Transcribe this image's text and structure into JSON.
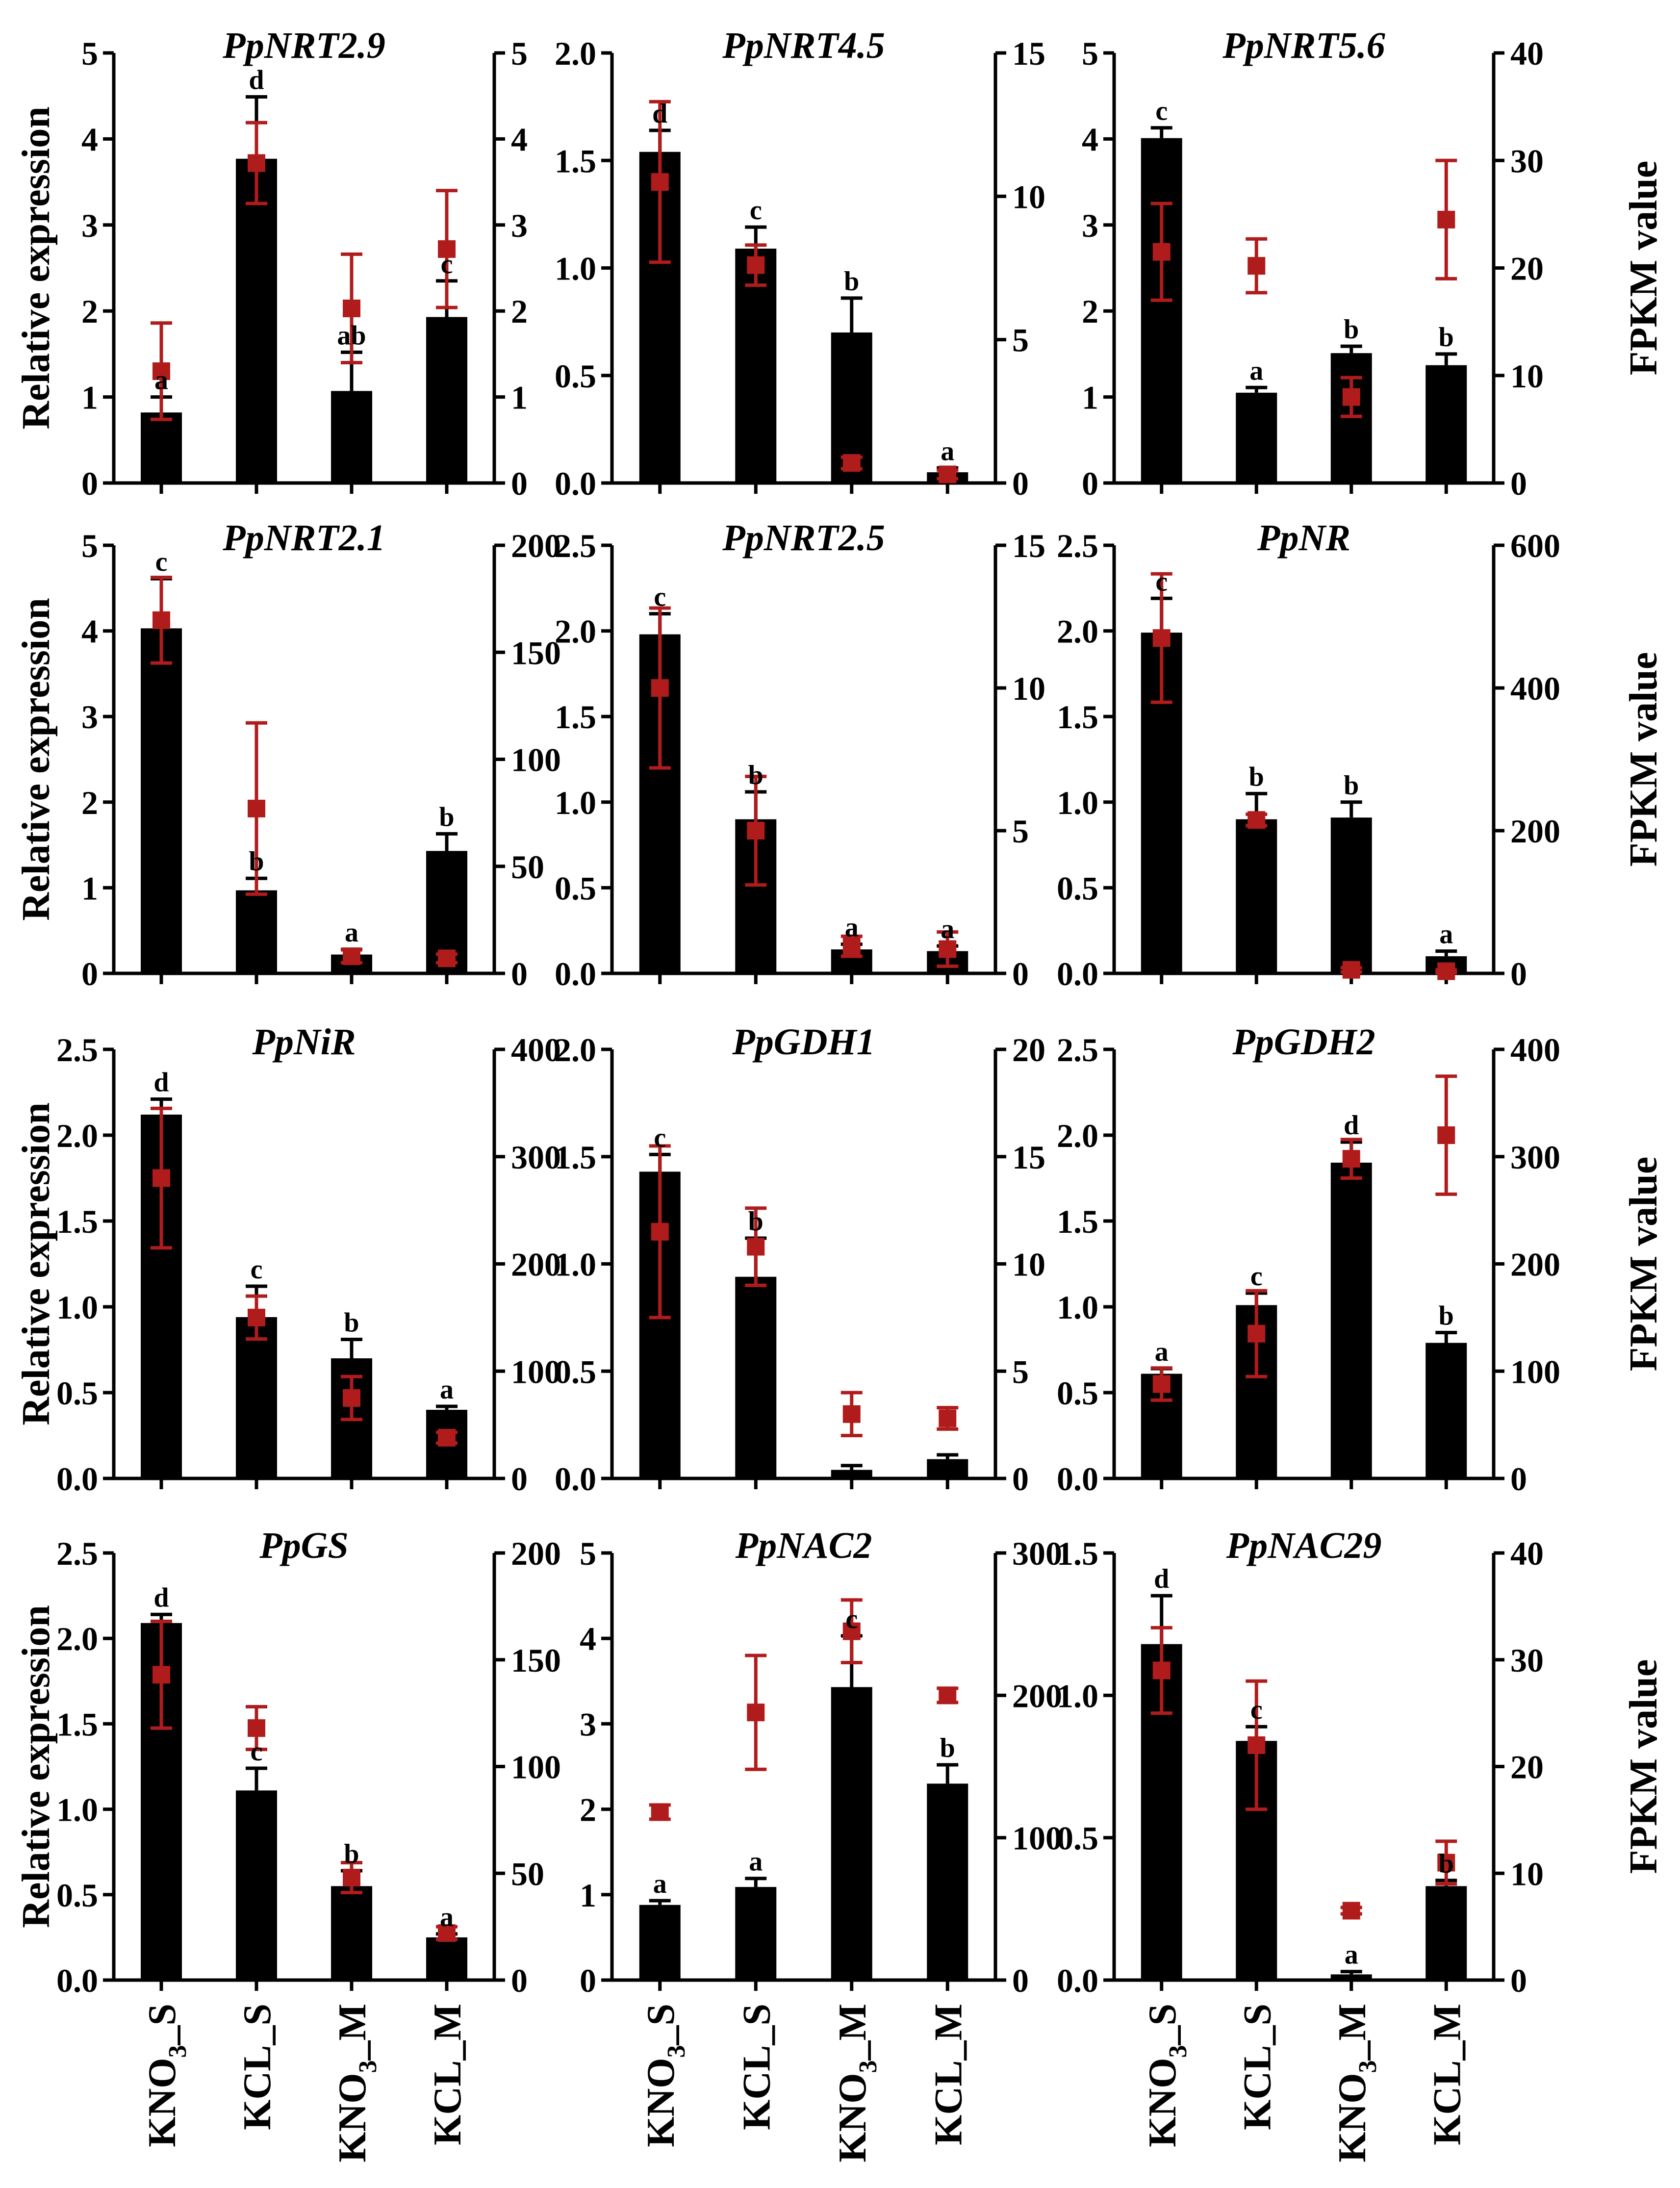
{
  "figure": {
    "ylabel_left": "Relative expression",
    "ylabel_right": "FPKM value",
    "x_labels": [
      {
        "main": "KNO",
        "sub": "3",
        "tail": "_S"
      },
      {
        "main": "KCL_S",
        "sub": "",
        "tail": ""
      },
      {
        "main": "KNO",
        "sub": "3",
        "tail": "_M"
      },
      {
        "main": "KCL_M",
        "sub": "",
        "tail": ""
      }
    ],
    "colors": {
      "bar": "#000000",
      "fpkm": "#b01c1c"
    }
  },
  "chart_data": [
    {
      "type": "bar",
      "title": "PpNRT2.9",
      "categories": [
        "KNO3_S",
        "KCL_S",
        "KNO3_M",
        "KCL_M"
      ],
      "ylim_left": [
        0,
        5
      ],
      "left_ticks": [
        "0",
        "1",
        "2",
        "3",
        "4",
        "5"
      ],
      "ylim_right": [
        0,
        5
      ],
      "right_ticks": [
        "0",
        "1",
        "2",
        "3",
        "4",
        "5"
      ],
      "series": [
        {
          "name": "Relative expression",
          "axis": "left",
          "values": [
            0.82,
            3.77,
            1.07,
            1.93
          ],
          "errors": [
            0.18,
            0.72,
            0.45,
            0.42
          ]
        },
        {
          "name": "FPKM value",
          "axis": "right",
          "values": [
            1.3,
            3.72,
            2.03,
            2.72
          ],
          "errors": [
            0.56,
            0.47,
            0.63,
            0.68
          ]
        }
      ],
      "letters": [
        "a",
        "d",
        "ab",
        "c"
      ]
    },
    {
      "type": "bar",
      "title": "PpNRT4.5",
      "categories": [
        "KNO3_S",
        "KCL_S",
        "KNO3_M",
        "KCL_M"
      ],
      "ylim_left": [
        0,
        2
      ],
      "left_ticks": [
        "0.0",
        "0.5",
        "1.0",
        "1.5",
        "2.0"
      ],
      "ylim_right": [
        0,
        15
      ],
      "right_ticks": [
        "0",
        "5",
        "10",
        "15"
      ],
      "series": [
        {
          "name": "Relative expression",
          "axis": "left",
          "values": [
            1.54,
            1.09,
            0.7,
            0.05
          ],
          "errors": [
            0.1,
            0.1,
            0.16,
            0.02
          ]
        },
        {
          "name": "FPKM value",
          "axis": "right",
          "values": [
            10.5,
            7.6,
            0.7,
            0.3
          ],
          "errors": [
            2.8,
            0.7,
            0.2,
            0.15
          ]
        }
      ],
      "letters": [
        "d",
        "c",
        "b",
        "a"
      ]
    },
    {
      "type": "bar",
      "title": "PpNRT5.6",
      "categories": [
        "KNO3_S",
        "KCL_S",
        "KNO3_M",
        "KCL_M"
      ],
      "ylim_left": [
        0,
        5
      ],
      "left_ticks": [
        "0",
        "1",
        "2",
        "3",
        "4",
        "5"
      ],
      "ylim_right": [
        0,
        40
      ],
      "right_ticks": [
        "0",
        "10",
        "20",
        "30",
        "40"
      ],
      "series": [
        {
          "name": "Relative expression",
          "axis": "left",
          "values": [
            4.01,
            1.05,
            1.51,
            1.37
          ],
          "errors": [
            0.12,
            0.06,
            0.08,
            0.13
          ]
        },
        {
          "name": "FPKM value",
          "axis": "right",
          "values": [
            21.5,
            20.2,
            8.0,
            24.5
          ],
          "errors": [
            4.5,
            2.5,
            1.8,
            5.5
          ]
        }
      ],
      "letters": [
        "c",
        "a",
        "b",
        "b"
      ]
    },
    {
      "type": "bar",
      "title": "PpNRT2.1",
      "categories": [
        "KNO3_S",
        "KCL_S",
        "KNO3_M",
        "KCL_M"
      ],
      "ylim_left": [
        0,
        5
      ],
      "left_ticks": [
        "0",
        "1",
        "2",
        "3",
        "4",
        "5"
      ],
      "ylim_right": [
        0,
        200
      ],
      "right_ticks": [
        "0",
        "50",
        "100",
        "150",
        "200"
      ],
      "series": [
        {
          "name": "Relative expression",
          "axis": "left",
          "values": [
            4.03,
            0.97,
            0.22,
            1.43
          ],
          "errors": [
            0.58,
            0.14,
            0.06,
            0.2
          ]
        },
        {
          "name": "FPKM value",
          "axis": "right",
          "values": [
            165,
            77,
            8,
            7
          ],
          "errors": [
            20,
            40,
            3,
            2
          ]
        }
      ],
      "letters": [
        "c",
        "b",
        "a",
        "b"
      ]
    },
    {
      "type": "bar",
      "title": "PpNRT2.5",
      "categories": [
        "KNO3_S",
        "KCL_S",
        "KNO3_M",
        "KCL_M"
      ],
      "ylim_left": [
        0,
        2.5
      ],
      "left_ticks": [
        "0.0",
        "0.5",
        "1.0",
        "1.5",
        "2.0",
        "2.5"
      ],
      "ylim_right": [
        0,
        15
      ],
      "right_ticks": [
        "0",
        "5",
        "10",
        "15"
      ],
      "series": [
        {
          "name": "Relative expression",
          "axis": "left",
          "values": [
            1.98,
            0.9,
            0.14,
            0.13
          ],
          "errors": [
            0.12,
            0.16,
            0.03,
            0.03
          ]
        },
        {
          "name": "FPKM value",
          "axis": "right",
          "values": [
            10.0,
            5.0,
            0.95,
            0.85
          ],
          "errors": [
            2.8,
            1.9,
            0.35,
            0.6
          ]
        }
      ],
      "letters": [
        "c",
        "b",
        "a",
        "a"
      ]
    },
    {
      "type": "bar",
      "title": "PpNR",
      "categories": [
        "KNO3_S",
        "KCL_S",
        "KNO3_M",
        "KCL_M"
      ],
      "ylim_left": [
        0,
        2.5
      ],
      "left_ticks": [
        "0.0",
        "0.5",
        "1.0",
        "1.5",
        "2.0",
        "2.5"
      ],
      "ylim_right": [
        0,
        600
      ],
      "right_ticks": [
        "0",
        "200",
        "400",
        "600"
      ],
      "series": [
        {
          "name": "Relative expression",
          "axis": "left",
          "values": [
            1.99,
            0.9,
            0.91,
            0.1
          ],
          "errors": [
            0.2,
            0.15,
            0.09,
            0.03
          ]
        },
        {
          "name": "FPKM value",
          "axis": "right",
          "values": [
            470,
            215,
            5,
            3
          ],
          "errors": [
            90,
            8,
            3,
            2
          ]
        }
      ],
      "letters": [
        "c",
        "b",
        "b",
        "a"
      ]
    },
    {
      "type": "bar",
      "title": "PpNiR",
      "categories": [
        "KNO3_S",
        "KCL_S",
        "KNO3_M",
        "KCL_M"
      ],
      "ylim_left": [
        0,
        2.5
      ],
      "left_ticks": [
        "0.0",
        "0.5",
        "1.0",
        "1.5",
        "2.0",
        "2.5"
      ],
      "ylim_right": [
        0,
        400
      ],
      "right_ticks": [
        "0",
        "100",
        "200",
        "300",
        "400"
      ],
      "series": [
        {
          "name": "Relative expression",
          "axis": "left",
          "values": [
            2.12,
            0.94,
            0.7,
            0.4
          ],
          "errors": [
            0.09,
            0.18,
            0.11,
            0.02
          ]
        },
        {
          "name": "FPKM value",
          "axis": "right",
          "values": [
            280,
            150,
            75,
            38
          ],
          "errors": [
            65,
            20,
            20,
            5
          ]
        }
      ],
      "letters": [
        "d",
        "c",
        "b",
        "a"
      ]
    },
    {
      "type": "bar",
      "title": "PpGDH1",
      "categories": [
        "KNO3_S",
        "KCL_S",
        "KNO3_M",
        "KCL_M"
      ],
      "ylim_left": [
        0,
        2
      ],
      "left_ticks": [
        "0.0",
        "0.5",
        "1.0",
        "1.5",
        "2.0"
      ],
      "ylim_right": [
        0,
        20
      ],
      "right_ticks": [
        "0",
        "5",
        "10",
        "15",
        "20"
      ],
      "series": [
        {
          "name": "Relative expression",
          "axis": "left",
          "values": [
            1.43,
            0.94,
            0.04,
            0.09
          ],
          "errors": [
            0.08,
            0.18,
            0.02,
            0.02
          ]
        },
        {
          "name": "FPKM value",
          "axis": "right",
          "values": [
            11.5,
            10.8,
            3.0,
            2.8
          ],
          "errors": [
            4.0,
            1.8,
            1.0,
            0.5
          ]
        }
      ],
      "letters": [
        "c",
        "b",
        "",
        ""
      ]
    },
    {
      "type": "bar",
      "title": "PpGDH2",
      "categories": [
        "KNO3_S",
        "KCL_S",
        "KNO3_M",
        "KCL_M"
      ],
      "ylim_left": [
        0,
        2.5
      ],
      "left_ticks": [
        "0.0",
        "0.5",
        "1.0",
        "1.5",
        "2.0",
        "2.5"
      ],
      "ylim_right": [
        0,
        400
      ],
      "right_ticks": [
        "0",
        "100",
        "200",
        "300",
        "400"
      ],
      "series": [
        {
          "name": "Relative expression",
          "axis": "left",
          "values": [
            0.61,
            1.01,
            1.84,
            0.79
          ],
          "errors": [
            0.03,
            0.07,
            0.12,
            0.06
          ]
        },
        {
          "name": "FPKM value",
          "axis": "right",
          "values": [
            88,
            135,
            298,
            320
          ],
          "errors": [
            15,
            40,
            18,
            55
          ]
        }
      ],
      "letters": [
        "a",
        "c",
        "d",
        "b"
      ]
    },
    {
      "type": "bar",
      "title": "PpGS",
      "categories": [
        "KNO3_S",
        "KCL_S",
        "KNO3_M",
        "KCL_M"
      ],
      "ylim_left": [
        0,
        2.5
      ],
      "left_ticks": [
        "0.0",
        "0.5",
        "1.0",
        "1.5",
        "2.0",
        "2.5"
      ],
      "ylim_right": [
        0,
        200
      ],
      "right_ticks": [
        "0",
        "50",
        "100",
        "150",
        "200"
      ],
      "series": [
        {
          "name": "Relative expression",
          "axis": "left",
          "values": [
            2.09,
            1.11,
            0.55,
            0.25
          ],
          "errors": [
            0.05,
            0.13,
            0.09,
            0.02
          ]
        },
        {
          "name": "FPKM value",
          "axis": "right",
          "values": [
            143,
            118,
            48,
            22
          ],
          "errors": [
            25,
            10,
            7,
            3
          ]
        }
      ],
      "letters": [
        "d",
        "c",
        "b",
        "a"
      ]
    },
    {
      "type": "bar",
      "title": "PpNAC2",
      "categories": [
        "KNO3_S",
        "KCL_S",
        "KNO3_M",
        "KCL_M"
      ],
      "ylim_left": [
        0,
        5
      ],
      "left_ticks": [
        "0",
        "1",
        "2",
        "3",
        "4",
        "5"
      ],
      "ylim_right": [
        0,
        300
      ],
      "right_ticks": [
        "0",
        "100",
        "200",
        "300"
      ],
      "series": [
        {
          "name": "Relative expression",
          "axis": "left",
          "values": [
            0.88,
            1.09,
            3.43,
            2.3
          ],
          "errors": [
            0.05,
            0.1,
            0.6,
            0.22
          ]
        },
        {
          "name": "FPKM value",
          "axis": "right",
          "values": [
            118,
            188,
            245,
            200
          ],
          "errors": [
            5,
            40,
            22,
            5
          ]
        }
      ],
      "letters": [
        "a",
        "a",
        "c",
        "b"
      ]
    },
    {
      "type": "bar",
      "title": "PpNAC29",
      "categories": [
        "KNO3_S",
        "KCL_S",
        "KNO3_M",
        "KCL_M"
      ],
      "ylim_left": [
        0,
        1.5
      ],
      "left_ticks": [
        "0.0",
        "0.5",
        "1.0",
        "1.5"
      ],
      "ylim_right": [
        0,
        40
      ],
      "right_ticks": [
        "0",
        "10",
        "20",
        "30",
        "40"
      ],
      "series": [
        {
          "name": "Relative expression",
          "axis": "left",
          "values": [
            1.18,
            0.84,
            0.02,
            0.33
          ],
          "errors": [
            0.17,
            0.05,
            0.01,
            0.02
          ]
        },
        {
          "name": "FPKM value",
          "axis": "right",
          "values": [
            29,
            22,
            6.5,
            11
          ],
          "errors": [
            4,
            6,
            0.3,
            2
          ]
        }
      ],
      "letters": [
        "d",
        "c",
        "a",
        "b"
      ]
    }
  ]
}
